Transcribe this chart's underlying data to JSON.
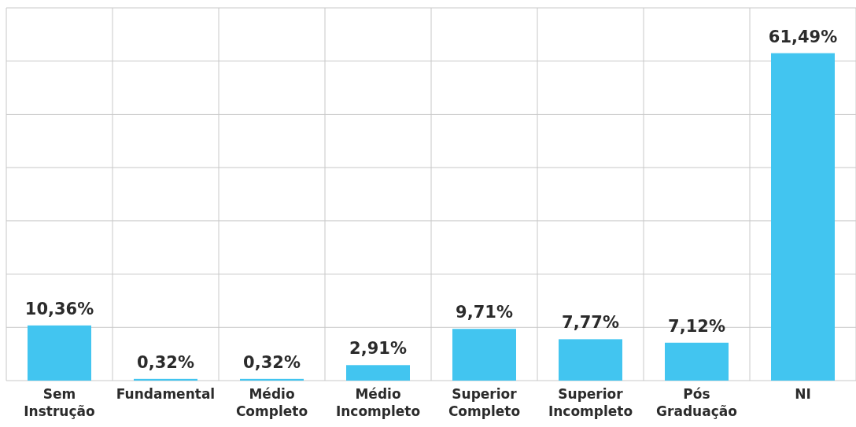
{
  "chart_data": {
    "type": "bar",
    "categories": [
      "Sem Instrução",
      "Fundamental",
      "Médio Completo",
      "Médio Incompleto",
      "Superior Completo",
      "Superior Incompleto",
      "Pós Graduação",
      "NI"
    ],
    "values": [
      10.36,
      0.32,
      0.32,
      2.91,
      9.71,
      7.77,
      7.12,
      61.49
    ],
    "value_labels": [
      "10,36%",
      "0,32%",
      "0,32%",
      "2,91%",
      "9,71%",
      "7,77%",
      "7,12%",
      "61,49%"
    ],
    "color": "#42c5f0",
    "ylim": [
      0,
      70
    ],
    "yticks": [
      {
        "value": 0,
        "label": null
      },
      {
        "value": 10,
        "label": null
      },
      {
        "value": 20,
        "label": null
      },
      {
        "value": 30,
        "label": null
      },
      {
        "value": 40,
        "label": null
      },
      {
        "value": 50,
        "label": null
      },
      {
        "value": 60,
        "label": null
      },
      {
        "value": 70,
        "label": null
      }
    ],
    "tick_labels": "x",
    "grid": true
  }
}
